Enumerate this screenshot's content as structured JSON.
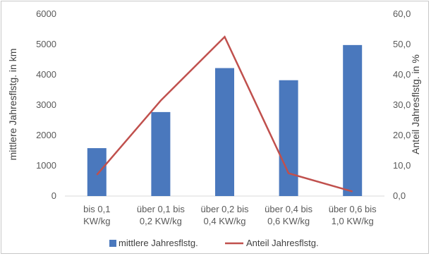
{
  "chart_data": {
    "type": "bar",
    "categories": [
      [
        "bis 0,1",
        "KW/kg"
      ],
      [
        "über 0,1 bis",
        "0,2 KW/kg"
      ],
      [
        "über 0,2 bis",
        "0,4 KW/kg"
      ],
      [
        "über 0,4 bis",
        "0,6 KW/kg"
      ],
      [
        "über 0,6 bis",
        "1,0 KW/kg"
      ]
    ],
    "series": [
      {
        "name": "mittlere Jahresflstg.",
        "type": "bar",
        "axis": "left",
        "color": "#4a78bd",
        "values": [
          1580,
          2770,
          4220,
          3820,
          4980
        ]
      },
      {
        "name": "Anteil Jahresflstg.",
        "type": "line",
        "axis": "right",
        "color": "#c0504d",
        "values": [
          7.0,
          31.5,
          52.5,
          7.5,
          1.5
        ]
      }
    ],
    "ylabel_left": "mittlere Jahresflstg. in km",
    "ylabel_right": "Anteil Jahresflstg. in %",
    "ylim_left": [
      0,
      6000
    ],
    "ylim_right": [
      0,
      60
    ],
    "yticks_left": [
      "0",
      "1000",
      "2000",
      "3000",
      "4000",
      "5000",
      "6000"
    ],
    "yticks_right": [
      "0,0",
      "10,0",
      "20,0",
      "30,0",
      "40,0",
      "50,0",
      "60,0"
    ],
    "legend_position": "bottom",
    "grid": false
  }
}
